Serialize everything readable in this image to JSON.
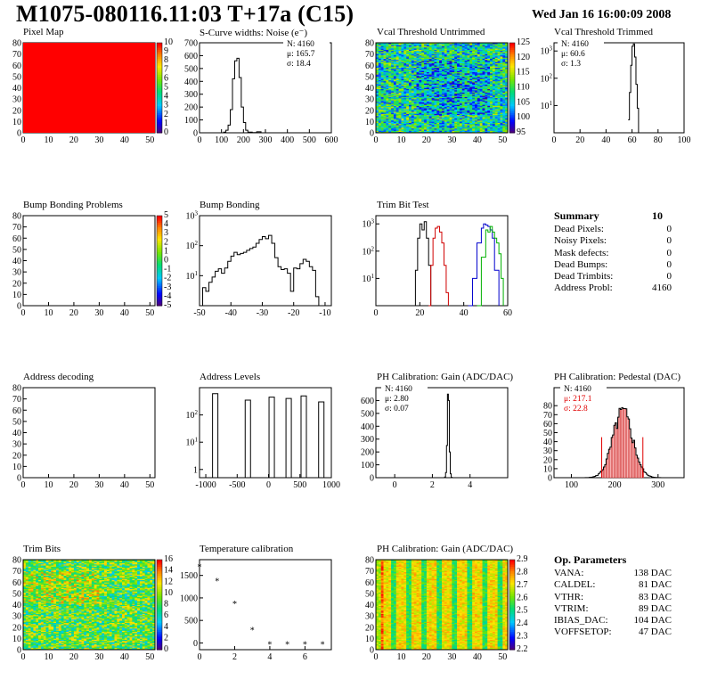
{
  "header": {
    "title": "M1075-080116.11:03 T+17a (C15)",
    "date": "Wed Jan 16 16:00:09 2008"
  },
  "panels": [
    {
      "id": "p1",
      "title": "Pixel Map"
    },
    {
      "id": "p2",
      "title": "S-Curve widths: Noise (e⁻)"
    },
    {
      "id": "p3",
      "title": "Vcal Threshold Untrimmed"
    },
    {
      "id": "p4",
      "title": "Vcal Threshold Trimmed"
    },
    {
      "id": "p5",
      "title": "Bump Bonding Problems"
    },
    {
      "id": "p6",
      "title": "Bump Bonding"
    },
    {
      "id": "p7",
      "title": "Trim Bit Test"
    },
    {
      "id": "p9",
      "title": "Address decoding"
    },
    {
      "id": "p10",
      "title": "Address Levels"
    },
    {
      "id": "p11",
      "title": "PH Calibration: Gain (ADC/DAC)"
    },
    {
      "id": "p12",
      "title": "PH Calibration: Pedestal (DAC)"
    },
    {
      "id": "p13",
      "title": "Trim Bits"
    },
    {
      "id": "p14",
      "title": "Temperature calibration"
    },
    {
      "id": "p15",
      "title": "PH Calibration: Gain (ADC/DAC)"
    }
  ],
  "stats": {
    "noise": [
      "N: 4160",
      "μ: 165.7",
      "σ: 18.4"
    ],
    "thr": [
      "N: 4160",
      "μ: 60.6",
      "σ:  1.3"
    ],
    "gain": [
      "N: 4160",
      "μ: 2.80",
      "σ: 0.07"
    ],
    "ped": [
      "N: 4160",
      "μ: 217.1",
      "σ: 22.8"
    ]
  },
  "summary": {
    "title": "Summary",
    "total": "10",
    "rows": [
      {
        "label": "Dead Pixels:",
        "value": "0"
      },
      {
        "label": "Noisy Pixels:",
        "value": "0"
      },
      {
        "label": "Mask defects:",
        "value": "0"
      },
      {
        "label": "Dead Bumps:",
        "value": "0"
      },
      {
        "label": "Dead Trimbits:",
        "value": "0"
      },
      {
        "label": "Address Probl:",
        "value": "4160"
      }
    ]
  },
  "op_params": {
    "title": "Op. Parameters",
    "rows": [
      {
        "label": "VANA:",
        "value": "138 DAC"
      },
      {
        "label": "CALDEL:",
        "value": "81 DAC"
      },
      {
        "label": "VTHR:",
        "value": "83 DAC"
      },
      {
        "label": "VTRIM:",
        "value": "89 DAC"
      },
      {
        "label": "IBIAS_DAC:",
        "value": "104 DAC"
      },
      {
        "label": "VOFFSETOP:",
        "value": "47 DAC"
      }
    ]
  },
  "chart_data": [
    {
      "id": "p1",
      "type": "heatmap",
      "title": "Pixel Map",
      "x_ticks": [
        0,
        10,
        20,
        30,
        40,
        50
      ],
      "y_ticks": [
        0,
        10,
        20,
        30,
        40,
        50,
        60,
        70,
        80
      ],
      "xlim": [
        0,
        52
      ],
      "ylim": [
        0,
        80
      ],
      "fill": "uniform",
      "uniform_color": "#ff0000",
      "z_ticks": [
        0,
        1,
        2,
        3,
        4,
        5,
        6,
        7,
        8,
        9,
        10
      ]
    },
    {
      "id": "p2",
      "type": "line",
      "title": "S-Curve widths: Noise (e⁻)",
      "xlim": [
        0,
        600
      ],
      "ylim": [
        0,
        700
      ],
      "x_ticks": [
        0,
        100,
        200,
        300,
        400,
        500,
        600
      ],
      "y_ticks": [
        0,
        100,
        200,
        300,
        400,
        500,
        600,
        700
      ],
      "histogram": {
        "x": [
          95,
          110,
          120,
          130,
          140,
          150,
          160,
          170,
          180,
          190,
          200,
          210,
          220,
          240,
          260,
          280
        ],
        "y": [
          0,
          5,
          20,
          60,
          180,
          420,
          560,
          580,
          430,
          200,
          80,
          20,
          5,
          2,
          8,
          0
        ]
      }
    },
    {
      "id": "p3",
      "type": "heatmap",
      "title": "Vcal Threshold Untrimmed",
      "x_ticks": [
        0,
        10,
        20,
        30,
        40,
        50
      ],
      "y_ticks": [
        0,
        10,
        20,
        30,
        40,
        50,
        60,
        70,
        80
      ],
      "xlim": [
        0,
        52
      ],
      "ylim": [
        0,
        80
      ],
      "fill": "noisy",
      "seed": 3,
      "z_ticks": [
        95,
        100,
        105,
        110,
        115,
        120,
        125
      ]
    },
    {
      "id": "p4",
      "type": "line",
      "title": "Vcal Threshold Trimmed",
      "xlim": [
        0,
        100
      ],
      "log_y": true,
      "ylim": [
        1,
        2000
      ],
      "x_ticks": [
        0,
        20,
        40,
        60,
        80,
        100
      ],
      "y_ticks": [
        10,
        100,
        1000
      ],
      "histogram": {
        "x": [
          57,
          58,
          59,
          60,
          61,
          62,
          63,
          64,
          65
        ],
        "y": [
          3,
          30,
          300,
          1500,
          1800,
          600,
          60,
          8,
          1
        ]
      }
    },
    {
      "id": "p5",
      "type": "heatmap",
      "title": "Bump Bonding Problems",
      "x_ticks": [
        0,
        10,
        20,
        30,
        40,
        50
      ],
      "y_ticks": [
        0,
        10,
        20,
        30,
        40,
        50,
        60,
        70,
        80
      ],
      "xlim": [
        0,
        52
      ],
      "ylim": [
        0,
        80
      ],
      "fill": "empty",
      "z_ticks": [
        -5,
        -4,
        -3,
        -2,
        -1,
        0,
        1,
        2,
        3,
        4,
        5
      ]
    },
    {
      "id": "p6",
      "type": "line",
      "title": "Bump Bonding",
      "xlim": [
        -50,
        -8
      ],
      "log_y": true,
      "ylim": [
        1,
        1000
      ],
      "x_ticks": [
        -50,
        -40,
        -30,
        -20,
        -10
      ],
      "y_ticks": [
        10,
        100,
        1000
      ],
      "histogram": {
        "x": [
          -50,
          -49,
          -48,
          -47,
          -46,
          -45,
          -44,
          -43,
          -42,
          -41,
          -40,
          -39,
          -38,
          -37,
          -36,
          -35,
          -34,
          -33,
          -32,
          -31,
          -30,
          -29,
          -28,
          -27,
          -26,
          -25,
          -24,
          -23,
          -22,
          -21,
          -20,
          -19,
          -18,
          -17,
          -16,
          -15,
          -14,
          -13,
          -12
        ],
        "y": [
          0,
          4,
          3,
          6,
          9,
          14,
          17,
          12,
          18,
          30,
          45,
          60,
          50,
          55,
          60,
          70,
          80,
          90,
          120,
          160,
          200,
          170,
          220,
          120,
          40,
          20,
          16,
          17,
          12,
          3,
          18,
          17,
          25,
          35,
          30,
          20,
          15,
          2,
          0
        ]
      }
    },
    {
      "id": "p7",
      "type": "line",
      "title": "Trim Bit Test",
      "xlim": [
        0,
        60
      ],
      "log_y": true,
      "ylim": [
        1,
        2000
      ],
      "x_ticks": [
        0,
        20,
        40,
        60
      ],
      "y_ticks": [
        10,
        100,
        1000
      ],
      "series": [
        {
          "color": "#000000",
          "x": [
            17,
            18,
            19,
            20,
            21,
            22,
            23,
            24,
            25
          ],
          "y": [
            1,
            20,
            300,
            1000,
            600,
            1200,
            300,
            30,
            1
          ]
        },
        {
          "color": "#d00000",
          "x": [
            24,
            25,
            26,
            27,
            28,
            29,
            30,
            31,
            32,
            33
          ],
          "y": [
            1,
            30,
            300,
            700,
            800,
            500,
            200,
            30,
            3,
            1
          ]
        },
        {
          "color": "#0000cc",
          "x": [
            42,
            44,
            46,
            48,
            49,
            50,
            51,
            52,
            53,
            54,
            56
          ],
          "y": [
            1,
            10,
            200,
            700,
            1000,
            900,
            800,
            600,
            300,
            20,
            1
          ]
        },
        {
          "color": "#00b000",
          "x": [
            46,
            48,
            50,
            51,
            52,
            53,
            54,
            55,
            56,
            57,
            58
          ],
          "y": [
            1,
            60,
            600,
            500,
            800,
            500,
            300,
            200,
            80,
            10,
            1
          ]
        }
      ]
    },
    {
      "id": "p9",
      "type": "heatmap",
      "title": "Address decoding",
      "x_ticks": [
        0,
        10,
        20,
        30,
        40,
        50
      ],
      "y_ticks": [
        0,
        10,
        20,
        30,
        40,
        50,
        60,
        70,
        80
      ],
      "xlim": [
        0,
        52
      ],
      "ylim": [
        0,
        80
      ],
      "fill": "empty",
      "z_ticks": []
    },
    {
      "id": "p10",
      "type": "line",
      "title": "Address Levels",
      "xlim": [
        -1100,
        1000
      ],
      "log_y": true,
      "ylim": [
        0.5,
        1000
      ],
      "x_ticks": [
        -1000,
        -500,
        0,
        500,
        1000
      ],
      "y_ticks": [
        1,
        10,
        100
      ],
      "peaks": [
        {
          "x": -850,
          "h": 600
        },
        {
          "x": -330,
          "h": 350
        },
        {
          "x": 50,
          "h": 450
        },
        {
          "x": 320,
          "h": 400
        },
        {
          "x": 560,
          "h": 500
        },
        {
          "x": 840,
          "h": 300
        }
      ]
    },
    {
      "id": "p11",
      "type": "line",
      "title": "PH Calibration: Gain (ADC/DAC)",
      "xlim": [
        -1,
        6
      ],
      "ylim": [
        0,
        700
      ],
      "x_ticks": [
        0,
        2,
        4
      ],
      "y_ticks": [
        0,
        100,
        200,
        300,
        400,
        500,
        600
      ],
      "histogram": {
        "x": [
          2.55,
          2.65,
          2.7,
          2.75,
          2.8,
          2.85,
          2.9,
          2.95,
          3.0,
          3.05
        ],
        "y": [
          0,
          5,
          40,
          250,
          650,
          600,
          200,
          30,
          3,
          0
        ]
      }
    },
    {
      "id": "p12",
      "type": "line",
      "title": "PH Calibration: Pedestal (DAC)",
      "xlim": [
        60,
        360
      ],
      "ylim": [
        0,
        100
      ],
      "x_ticks": [
        100,
        200,
        300
      ],
      "y_ticks": [
        0,
        10,
        20,
        30,
        40,
        50,
        60,
        70,
        80
      ],
      "histogram": {
        "mu": 217,
        "sigma": 23,
        "peak": 72
      },
      "cut_lines": [
        170,
        265
      ]
    },
    {
      "id": "p13",
      "type": "heatmap",
      "title": "Trim Bits",
      "x_ticks": [
        0,
        10,
        20,
        30,
        40,
        50
      ],
      "y_ticks": [
        0,
        10,
        20,
        30,
        40,
        50,
        60,
        70,
        80
      ],
      "xlim": [
        0,
        52
      ],
      "ylim": [
        0,
        80
      ],
      "fill": "trim",
      "seed": 7,
      "z_ticks": [
        0,
        2,
        4,
        6,
        8,
        10,
        12,
        14,
        16
      ]
    },
    {
      "id": "p14",
      "type": "scatter",
      "title": "Temperature calibration",
      "xlim": [
        0,
        7.5
      ],
      "ylim": [
        -150,
        1850
      ],
      "x_ticks": [
        0,
        2,
        4,
        6
      ],
      "y_ticks": [
        0,
        500,
        1000,
        1500
      ],
      "x": [
        0,
        1,
        2,
        3,
        4,
        5,
        6,
        7
      ],
      "y": [
        1720,
        1400,
        900,
        320,
        0,
        0,
        0,
        0
      ]
    },
    {
      "id": "p15",
      "type": "heatmap",
      "title": "PH Calibration: Gain (ADC/DAC)",
      "x_ticks": [
        0,
        10,
        20,
        30,
        40,
        50
      ],
      "y_ticks": [
        0,
        10,
        20,
        30,
        40,
        50,
        60,
        70,
        80
      ],
      "xlim": [
        0,
        52
      ],
      "ylim": [
        0,
        80
      ],
      "fill": "gain",
      "seed": 11,
      "z_ticks": [
        2.2,
        2.3,
        2.4,
        2.5,
        2.6,
        2.7,
        2.8,
        2.9
      ]
    }
  ]
}
